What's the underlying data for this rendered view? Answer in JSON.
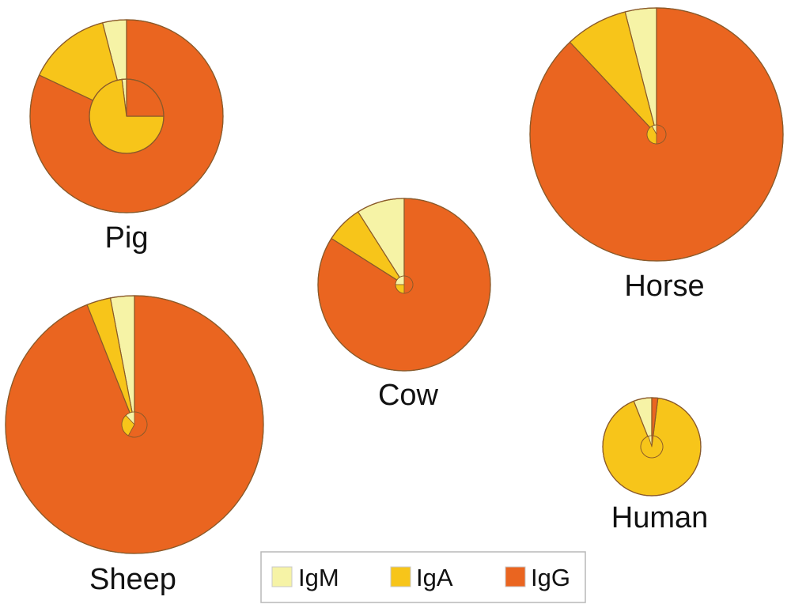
{
  "chart_data": {
    "type": "pie",
    "categories": [
      "IgM",
      "IgA",
      "IgG"
    ],
    "colors": {
      "IgM": "#f6f3a6",
      "IgA": "#f7c51a",
      "IgG": "#ea6520"
    },
    "legend": {
      "placement": "bottom-center",
      "entries": [
        "IgM",
        "IgA",
        "IgG"
      ]
    },
    "charts": [
      {
        "label": "Pig",
        "outer": {
          "IgM": 4,
          "IgA": 14,
          "IgG": 82
        },
        "inner": {
          "IgM": 2,
          "IgA": 73,
          "IgG": 25
        }
      },
      {
        "label": "Cow",
        "outer": {
          "IgM": 9,
          "IgA": 7,
          "IgG": 84
        },
        "inner": {
          "IgM": 25,
          "IgA": 25,
          "IgG": 50
        }
      },
      {
        "label": "Horse",
        "outer": {
          "IgM": 4,
          "IgA": 8,
          "IgG": 88
        },
        "inner": {
          "IgM": 8,
          "IgA": 42,
          "IgG": 50
        }
      },
      {
        "label": "Sheep",
        "outer": {
          "IgM": 3,
          "IgA": 3,
          "IgG": 94
        },
        "inner": {
          "IgM": 12,
          "IgA": 30,
          "IgG": 58
        }
      },
      {
        "label": "Human",
        "outer": {
          "IgM": 6,
          "IgA": 92,
          "IgG": 2
        },
        "inner": {
          "IgM": 5,
          "IgA": 93,
          "IgG": 2
        }
      }
    ]
  }
}
